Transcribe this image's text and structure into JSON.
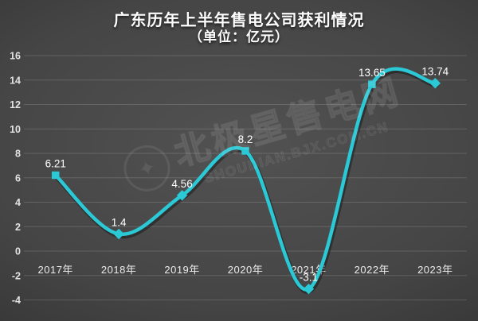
{
  "title": "广东历年上半年售电公司获利情况",
  "subtitle": "（单位：亿元）",
  "watermark": {
    "logo_icon": "star-badge-icon",
    "text": "北极星售电网",
    "subtext": "SHOUDIAN.BJX.COM.CN"
  },
  "chart_data": {
    "type": "line",
    "title": "广东历年上半年售电公司获利情况",
    "subtitle": "（单位：亿元）",
    "categories": [
      "2017年",
      "2018年",
      "2019年",
      "2020年",
      "2021年",
      "2022年",
      "2023年"
    ],
    "values": [
      6.21,
      1.4,
      4.56,
      8.2,
      -3.1,
      13.65,
      13.74
    ],
    "point_labels": [
      "6.21",
      "1.4",
      "4.56",
      "8.2",
      "-3.1",
      "13.65",
      "13.74"
    ],
    "xlabel": "",
    "ylabel": "",
    "ylim": [
      -4,
      16
    ],
    "yticks": [
      16,
      14,
      12,
      10,
      8,
      6,
      4,
      2,
      0,
      -2,
      -4
    ],
    "grid": true,
    "legend": false,
    "smooth": true,
    "line_color": "#2bc8d5",
    "line_shadow_color": "rgba(0,0,0,0.35)",
    "marker_shapes": [
      "square",
      "diamond",
      "diamond",
      "square",
      "diamond",
      "square",
      "diamond"
    ],
    "data_label_color": "#ffffff",
    "axis_label_color": "#e3e3e3",
    "grid_color": "rgba(255,255,255,0.15)"
  }
}
